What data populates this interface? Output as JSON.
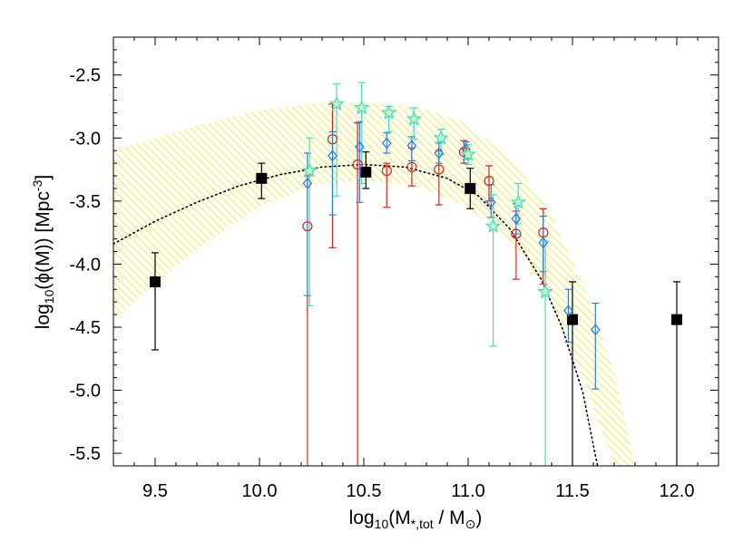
{
  "chart_data": {
    "type": "scatter",
    "title": "",
    "xlim": [
      9.3,
      12.2
    ],
    "ylim": [
      -5.6,
      -2.2
    ],
    "x_ticks": [
      9.5,
      10.0,
      10.5,
      11.0,
      11.5,
      12.0
    ],
    "x_tick_labels": [
      "9.5",
      "10.0",
      "10.5",
      "11.0",
      "11.5",
      "12.0"
    ],
    "y_ticks": [
      -5.5,
      -5.0,
      -4.5,
      -4.0,
      -3.5,
      -3.0,
      -2.5
    ],
    "y_tick_labels": [
      "-5.5",
      "-5.0",
      "-4.5",
      "-4.0",
      "-3.5",
      "-3.0",
      "-2.5"
    ],
    "xlabel": {
      "pre": "log",
      "sub1": "10",
      "mid": "(M",
      "sub2": "*,tot",
      "post": " / M",
      "sym": "⊙",
      "end": ")"
    },
    "ylabel": {
      "pre": "log",
      "sub1": "10",
      "mid": "(ϕ(M))  [Mpc",
      "sup": "-3",
      "end": "]"
    },
    "grid": false,
    "colors": {
      "black": "#000000",
      "red": "#e02020",
      "blue": "#2a7fe0",
      "cyan": "#38e0c8",
      "star_fill": "#c8f0c0",
      "hatch": "#eaea20"
    },
    "band": {
      "x": [
        9.3,
        9.5,
        9.75,
        10.0,
        10.25,
        10.5,
        10.75,
        11.0,
        11.25,
        11.4,
        11.55,
        11.7,
        11.8
      ],
      "upper": [
        -3.1,
        -3.0,
        -2.88,
        -2.78,
        -2.73,
        -2.72,
        -2.75,
        -2.88,
        -3.25,
        -3.62,
        -4.15,
        -4.85,
        -5.6
      ],
      "lower": [
        -4.45,
        -4.15,
        -3.82,
        -3.55,
        -3.38,
        -3.34,
        -3.38,
        -3.55,
        -3.9,
        -4.3,
        -4.9,
        -5.6,
        -5.6
      ]
    },
    "series": [
      {
        "marker": "square",
        "color": "black",
        "x": [
          9.5,
          10.01,
          10.51,
          11.01,
          11.5,
          12.0
        ],
        "y": [
          -4.14,
          -3.32,
          -3.27,
          -3.4,
          -4.44,
          -4.44
        ],
        "y_low": [
          -4.68,
          -3.48,
          -3.4,
          -3.56,
          -5.6,
          -5.6
        ],
        "y_high": [
          -3.91,
          -3.2,
          -3.11,
          -3.24,
          -4.14,
          -4.14
        ]
      },
      {
        "marker": "circle",
        "color": "red",
        "x": [
          10.23,
          10.35,
          10.47,
          10.61,
          10.73,
          10.86,
          10.98,
          11.1,
          11.23,
          11.36
        ],
        "y": [
          -3.7,
          -3.01,
          -3.21,
          -3.26,
          -3.23,
          -3.25,
          -3.11,
          -3.34,
          -3.76,
          -3.75
        ],
        "y_low": [
          -5.6,
          -3.87,
          -5.6,
          -3.55,
          -3.38,
          -3.53,
          -3.2,
          -3.5,
          -4.12,
          -4.16
        ],
        "y_high": [
          -3.3,
          -2.73,
          -2.88,
          -3.2,
          -3.08,
          -3.1,
          -3.02,
          -3.22,
          -3.58,
          -3.56
        ]
      },
      {
        "marker": "diamond",
        "color": "blue",
        "x": [
          10.23,
          10.35,
          10.48,
          10.61,
          10.73,
          10.86,
          10.99,
          11.11,
          11.23,
          11.36,
          11.48,
          11.61
        ],
        "y": [
          -3.36,
          -3.14,
          -3.07,
          -3.04,
          -3.06,
          -3.12,
          -3.09,
          -3.51,
          -3.64,
          -3.83,
          -4.37,
          -4.52
        ],
        "y_low": [
          -4.25,
          -3.61,
          -3.51,
          -3.12,
          -3.18,
          -3.2,
          -3.17,
          -3.63,
          -3.76,
          -4.06,
          -4.62,
          -4.99
        ],
        "y_high": [
          -3.12,
          -2.95,
          -2.87,
          -2.96,
          -2.99,
          -3.04,
          -3.03,
          -3.37,
          -3.52,
          -3.62,
          -4.2,
          -4.31
        ]
      },
      {
        "marker": "star",
        "color": "cyan",
        "x": [
          10.24,
          10.37,
          10.49,
          10.62,
          10.74,
          10.87,
          11.0,
          11.12,
          11.24,
          11.37
        ],
        "y": [
          -3.26,
          -2.73,
          -2.76,
          -2.8,
          -2.85,
          -3.0,
          -3.13,
          -3.7,
          -3.51,
          -4.22
        ],
        "y_low": [
          -4.33,
          -3.46,
          -3.36,
          -2.95,
          -3.01,
          -3.13,
          -3.21,
          -4.65,
          -3.68,
          -5.6
        ],
        "y_high": [
          -3.0,
          -2.57,
          -2.56,
          -2.75,
          -2.76,
          -2.93,
          -3.05,
          -3.45,
          -3.36,
          -3.82
        ]
      }
    ],
    "fit_curve": {
      "style": "dotted",
      "color": "black",
      "x": [
        9.3,
        9.5,
        9.7,
        9.9,
        10.1,
        10.3,
        10.5,
        10.7,
        10.9,
        11.05,
        11.2,
        11.35,
        11.45,
        11.55,
        11.62
      ],
      "y": [
        -3.84,
        -3.66,
        -3.51,
        -3.38,
        -3.29,
        -3.23,
        -3.21,
        -3.23,
        -3.32,
        -3.46,
        -3.72,
        -4.12,
        -4.5,
        -5.02,
        -5.6
      ]
    }
  }
}
